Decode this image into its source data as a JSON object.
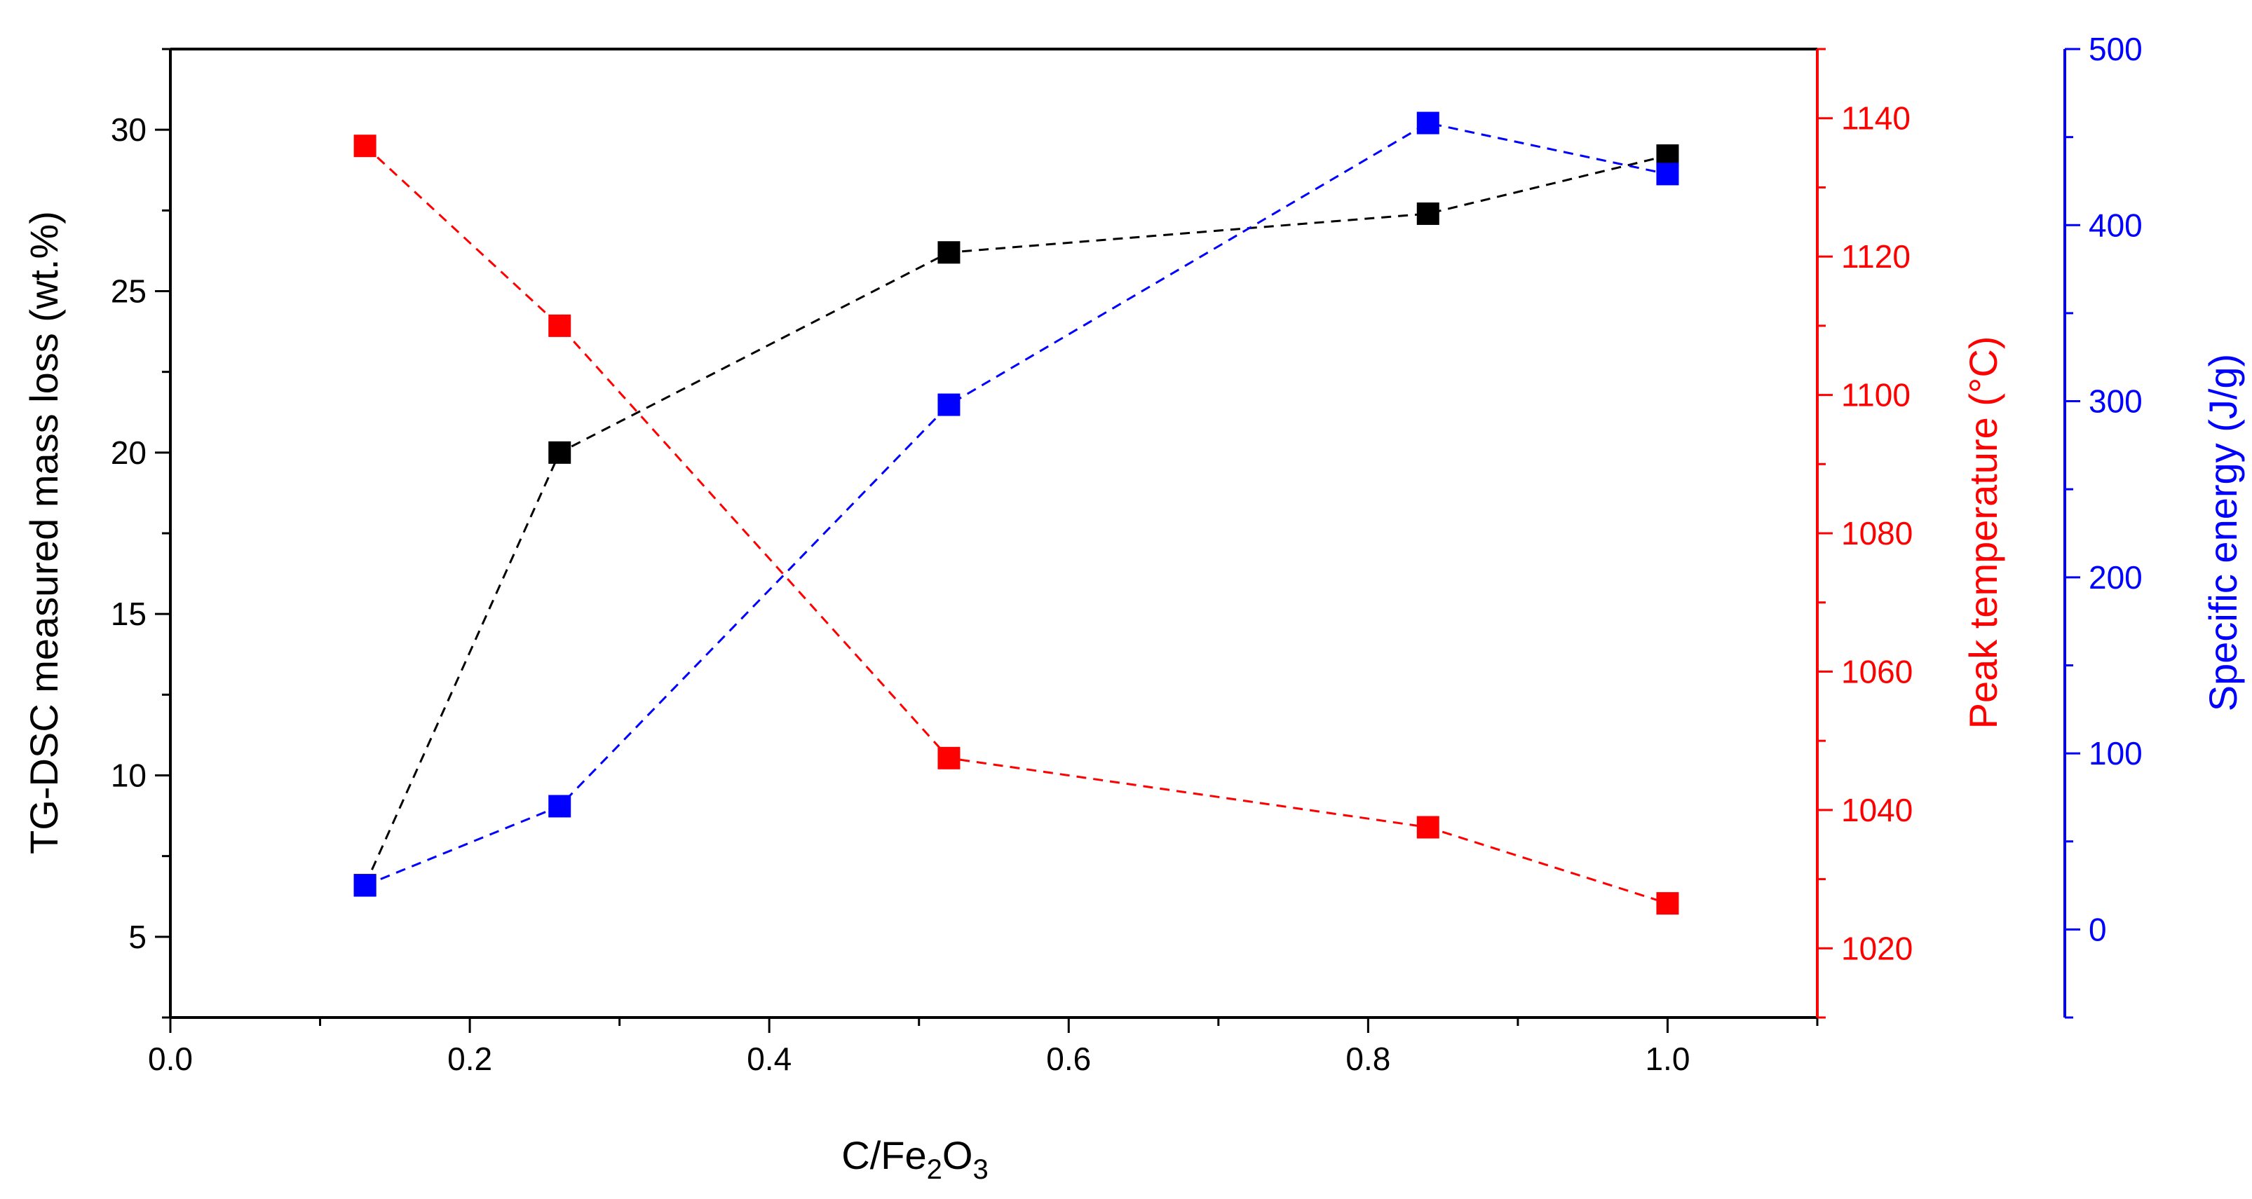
{
  "chart_data": {
    "type": "scatter",
    "title": "",
    "xlabel": {
      "main": "C/Fe",
      "sub1": "2",
      "mid": "O",
      "sub2": "3"
    },
    "xlim": [
      0.0,
      1.1
    ],
    "x_ticks": [
      0.0,
      0.2,
      0.4,
      0.6,
      0.8,
      1.0
    ],
    "x_tick_labels": [
      "0.0",
      "0.2",
      "0.4",
      "0.6",
      "0.8",
      "1.0"
    ],
    "x": [
      0.13,
      0.26,
      0.52,
      0.84,
      1.0
    ],
    "axes": {
      "left": {
        "label": "TG-DSC measured mass loss (wt.%)",
        "color": "#000000",
        "ylim": [
          2.5,
          32.5
        ],
        "ticks": [
          5,
          10,
          15,
          20,
          25,
          30
        ],
        "tick_labels": [
          "5",
          "10",
          "15",
          "20",
          "25",
          "30"
        ]
      },
      "right": {
        "label": "Peak temperature (°C)",
        "color": "#ff0000",
        "ylim": [
          1010,
          1150
        ],
        "ticks": [
          1020,
          1040,
          1060,
          1080,
          1100,
          1120,
          1140
        ],
        "tick_labels": [
          "1020",
          "1040",
          "1060",
          "1080",
          "1100",
          "1120",
          "1140"
        ]
      },
      "right2": {
        "label": "Specific energy (J/g)",
        "color": "#0000ff",
        "ylim": [
          -50,
          500
        ],
        "ticks": [
          0,
          100,
          200,
          300,
          400,
          500
        ],
        "tick_labels": [
          "0",
          "100",
          "200",
          "300",
          "400",
          "500"
        ]
      }
    },
    "series": [
      {
        "name": "Mass loss",
        "axis": "left",
        "color": "#000000",
        "values": [
          6.6,
          20.0,
          26.2,
          27.4,
          29.2
        ]
      },
      {
        "name": "Peak temperature",
        "axis": "right",
        "color": "#ff0000",
        "values": [
          1136.0,
          1110.0,
          1047.5,
          1037.5,
          1026.5
        ]
      },
      {
        "name": "Specific energy",
        "axis": "right2",
        "color": "#0000ff",
        "values": [
          25,
          70,
          298,
          458,
          429
        ]
      }
    ],
    "grid": false,
    "legend": "none"
  }
}
